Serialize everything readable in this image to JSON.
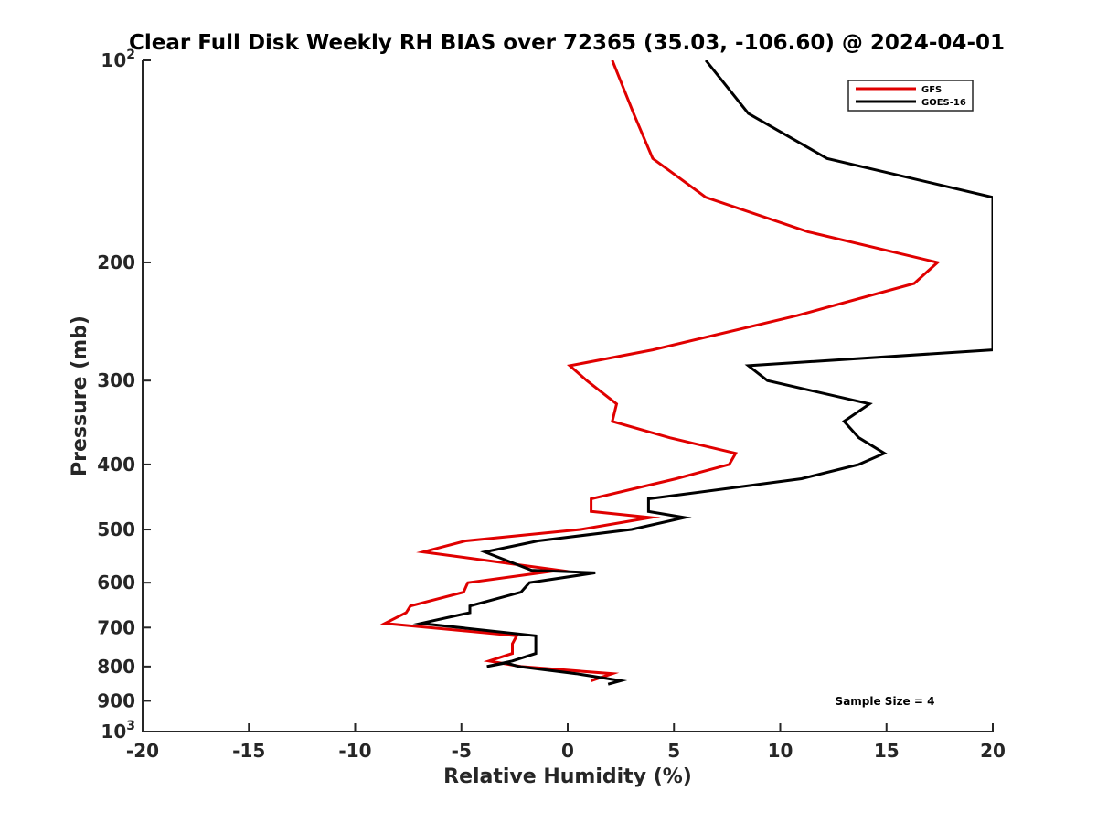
{
  "chart_data": {
    "type": "line",
    "title": "Clear Full Disk Weekly RH BIAS over 72365 (35.03, -106.60) @ 2024-04-01",
    "xlabel": "Relative Humidity (%)",
    "ylabel": "Pressure (mb)",
    "xlim": [
      -20,
      20
    ],
    "ylim": [
      100,
      1000
    ],
    "y_scale": "log",
    "y_reversed": true,
    "x_ticks": [
      -20,
      -15,
      -10,
      -5,
      0,
      5,
      10,
      15,
      20
    ],
    "x_tick_labels": [
      "-20",
      "-15",
      "-10",
      "-5",
      "0",
      "5",
      "10",
      "15",
      "20"
    ],
    "y_ticks": [
      100,
      200,
      300,
      400,
      500,
      600,
      700,
      800,
      900,
      1000
    ],
    "y_tick_labels": [
      {
        "base": "10",
        "exp": "2"
      },
      {
        "base": "200",
        "exp": ""
      },
      {
        "base": "300",
        "exp": ""
      },
      {
        "base": "400",
        "exp": ""
      },
      {
        "base": "500",
        "exp": ""
      },
      {
        "base": "600",
        "exp": ""
      },
      {
        "base": "700",
        "exp": ""
      },
      {
        "base": "800",
        "exp": ""
      },
      {
        "base": "900",
        "exp": ""
      },
      {
        "base": "10",
        "exp": "3"
      }
    ],
    "grid": false,
    "legend_position": "top-right",
    "annotation": "Sample Size = 4",
    "series": [
      {
        "name": "GFS",
        "color": "#e00000",
        "x": [
          2.1,
          3.1,
          4.0,
          6.5,
          11.3,
          17.4,
          16.3,
          10.8,
          4.0,
          0.1,
          0.9,
          2.3,
          2.1,
          4.8,
          7.9,
          7.6,
          5.1,
          1.1,
          1.1,
          3.9,
          0.6,
          -4.8,
          -6.8,
          -0.4,
          -4.7,
          -4.9,
          -7.4,
          -7.6,
          -8.6,
          -2.4,
          -2.6,
          -2.6,
          -3.7,
          -2.2,
          2.1,
          1.1
        ],
        "y": [
          100,
          120,
          140,
          160,
          180,
          200,
          215,
          240,
          270,
          285,
          300,
          325,
          345,
          365,
          385,
          400,
          420,
          450,
          470,
          480,
          500,
          520,
          540,
          575,
          600,
          620,
          650,
          665,
          690,
          720,
          740,
          765,
          785,
          800,
          820,
          840
        ]
      },
      {
        "name": "GOES-16",
        "color": "#000000",
        "x": [
          6.5,
          8.5,
          12.2,
          20.0,
          20.0,
          8.5,
          9.4,
          14.2,
          13.0,
          13.7,
          14.9,
          13.7,
          11.0,
          3.8,
          3.8,
          5.5,
          3.0,
          -1.4,
          -3.9,
          -1.7,
          1.3,
          -1.8,
          -2.2,
          -4.6,
          -4.6,
          -6.9,
          -1.5,
          -1.5,
          -1.5,
          -2.6,
          -3.8,
          -2.9,
          -2.3,
          0.4,
          2.5,
          1.9
        ],
        "y": [
          100,
          120,
          140,
          160,
          270,
          285,
          300,
          325,
          345,
          365,
          385,
          400,
          420,
          450,
          470,
          480,
          500,
          520,
          540,
          575,
          580,
          600,
          620,
          650,
          665,
          690,
          720,
          740,
          765,
          785,
          800,
          790,
          800,
          820,
          840,
          850
        ]
      }
    ]
  }
}
